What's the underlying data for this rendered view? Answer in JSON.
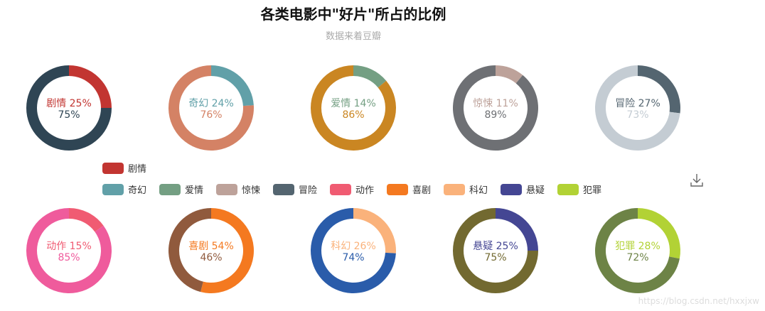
{
  "chart_data": {
    "type": "pie",
    "title": "各类电影中\"好片\"所占的比例",
    "subtitle": "数据来着豆瓣",
    "charts": [
      {
        "name": "剧情",
        "label": "剧情 25%",
        "rest_label": "75%",
        "value": 25,
        "rest": 75,
        "color": "#c23531",
        "rest_color": "#2f4554"
      },
      {
        "name": "奇幻",
        "label": "奇幻 24%",
        "rest_label": "76%",
        "value": 24,
        "rest": 76,
        "color": "#61a0a8",
        "rest_color": "#d48265"
      },
      {
        "name": "爱情",
        "label": "爱情 14%",
        "rest_label": "86%",
        "value": 14,
        "rest": 86,
        "color": "#749f83",
        "rest_color": "#ca8622"
      },
      {
        "name": "惊悚",
        "label": "惊悚 11%",
        "rest_label": "89%",
        "value": 11,
        "rest": 89,
        "color": "#bda29a",
        "rest_color": "#6e7074"
      },
      {
        "name": "冒险",
        "label": "冒险 27%",
        "rest_label": "73%",
        "value": 27,
        "rest": 73,
        "color": "#546570",
        "rest_color": "#c4ccd3"
      },
      {
        "name": "动作",
        "label": "动作 15%",
        "rest_label": "85%",
        "value": 15,
        "rest": 85,
        "color": "#f05b72",
        "rest_color": "#ef5b9c"
      },
      {
        "name": "喜剧",
        "label": "喜剧 54%",
        "rest_label": "46%",
        "value": 54,
        "rest": 46,
        "color": "#f47920",
        "rest_color": "#905a3d"
      },
      {
        "name": "科幻",
        "label": "科幻 26%",
        "rest_label": "74%",
        "value": 26,
        "rest": 74,
        "color": "#fab27b",
        "rest_color": "#2a5caa"
      },
      {
        "name": "悬疑",
        "label": "悬疑 25%",
        "rest_label": "75%",
        "value": 25,
        "rest": 75,
        "color": "#444693",
        "rest_color": "#726930"
      },
      {
        "name": "犯罪",
        "label": "犯罪 28%",
        "rest_label": "72%",
        "value": 28,
        "rest": 72,
        "color": "#b2d235",
        "rest_color": "#6d8346"
      }
    ],
    "legend": {
      "placement": "center",
      "items": [
        {
          "name": "剧情",
          "color": "#c23531"
        },
        {
          "name": "奇幻",
          "color": "#61a0a8"
        },
        {
          "name": "爱情",
          "color": "#749f83"
        },
        {
          "name": "惊悚",
          "color": "#bda29a"
        },
        {
          "name": "冒险",
          "color": "#546570"
        },
        {
          "name": "动作",
          "color": "#f05b72"
        },
        {
          "name": "喜剧",
          "color": "#f47920"
        },
        {
          "name": "科幻",
          "color": "#fab27b"
        },
        {
          "name": "悬疑",
          "color": "#444693"
        },
        {
          "name": "犯罪",
          "color": "#b2d235"
        }
      ]
    }
  },
  "toolbox": {
    "icon": "download-icon"
  },
  "watermark": "https://blog.csdn.net/hxxjxw"
}
